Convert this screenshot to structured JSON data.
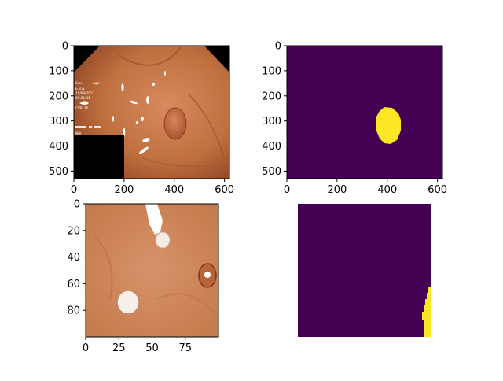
{
  "chart_data": [
    {
      "type": "image",
      "panel": "endoscopy-frame",
      "xlim": [
        0,
        620
      ],
      "ylim": [
        530,
        0
      ],
      "xticks": [
        0,
        200,
        400,
        600
      ],
      "yticks": [
        0,
        100,
        200,
        300,
        400,
        500
      ],
      "xtick_labels": [
        "0",
        "200",
        "400",
        "600"
      ],
      "ytick_labels": [
        "0",
        "100",
        "200",
        "300",
        "400",
        "500"
      ],
      "overlay_text": [
        "Sex:",
        "Age:",
        "E.B.A.",
        "16/09/2012",
        "09:21:41",
        "CVP: 10",
        "N/A"
      ],
      "colors": {
        "tissue": "#c8744a",
        "tissue_dark": "#9c4f2f",
        "mask_bg": "#000000",
        "highlight": "#ffffff"
      }
    },
    {
      "type": "heatmap",
      "panel": "segmentation-mask",
      "xlim": [
        0,
        620
      ],
      "ylim": [
        530,
        0
      ],
      "xticks": [
        0,
        200,
        400,
        600
      ],
      "yticks": [
        0,
        100,
        200,
        300,
        400,
        500
      ],
      "xtick_labels": [
        "0",
        "200",
        "400",
        "600"
      ],
      "ytick_labels": [
        "0",
        "100",
        "200",
        "300",
        "400",
        "500"
      ],
      "background_value": 0,
      "foreground_value": 1,
      "polyp_region_center": [
        410,
        315
      ],
      "colors": {
        "background": "#440154",
        "foreground": "#fde725"
      }
    },
    {
      "type": "image",
      "panel": "image-crop",
      "xlim": [
        0,
        100
      ],
      "ylim": [
        100,
        0
      ],
      "xticks": [
        0,
        25,
        50,
        75
      ],
      "yticks": [
        0,
        20,
        40,
        60,
        80
      ],
      "xtick_labels": [
        "0",
        "25",
        "50",
        "75"
      ],
      "ytick_labels": [
        "0",
        "20",
        "40",
        "60",
        "80"
      ],
      "colors": {
        "tissue": "#c9825a",
        "tissue_light": "#d89670",
        "highlight": "#ffffff"
      }
    },
    {
      "type": "heatmap",
      "panel": "mask-crop",
      "axis": "off",
      "xlim": [
        0,
        100
      ],
      "ylim": [
        100,
        0
      ],
      "background_value": 0,
      "foreground_value": 1,
      "colors": {
        "background": "#440154",
        "foreground": "#fde725"
      }
    }
  ]
}
